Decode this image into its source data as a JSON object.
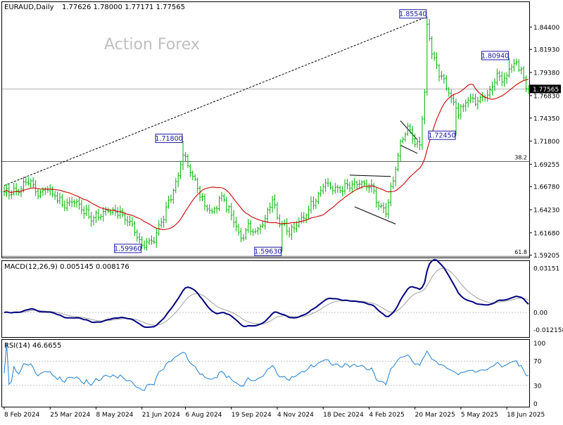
{
  "header": {
    "symbol": "EURAUD,Daily",
    "ohlc": "1.77626 1.78000 1.77171 1.77565"
  },
  "watermark": "Action Forex",
  "colors": {
    "candle": "#00b000",
    "ma": "#cc0000",
    "macd": "#000080",
    "signal": "#a0a0a0",
    "rsi": "#1e7fd0",
    "label_box": "#1a1aa0",
    "trendline": "#000000",
    "price_tag_bg": "#000000"
  },
  "chart_data": [
    {
      "type": "line",
      "title": "EURAUD,Daily",
      "subtitle": "1.77626 1.78000 1.77171 1.77565",
      "yticks": [
        "1.84400",
        "1.81930",
        "1.79380",
        "1.76830",
        "1.74350",
        "1.71800",
        "1.69255",
        "1.66780",
        "1.64230",
        "1.61680",
        "1.59205"
      ],
      "xticks": [
        "8 Feb 2024",
        "25 Mar 2024",
        "8 May 2024",
        "21 Jun 2024",
        "6 Aug 2024",
        "19 Sep 2024",
        "4 Nov 2024",
        "18 Dec 2024",
        "4 Feb 2025",
        "20 Mar 2025",
        "5 May 2025",
        "18 Jun 2025"
      ],
      "ylim": [
        1.5895,
        1.8715
      ],
      "current_price": "1.77565",
      "current_price_value": 1.77565,
      "fib_levels": [
        {
          "label": "38.2",
          "value": 1.6957
        },
        {
          "label": "61.8",
          "value": 1.5909
        }
      ],
      "annotations": [
        {
          "text": "1.85540",
          "value": 1.8554,
          "idx": 175
        },
        {
          "text": "1.80940",
          "value": 1.8094,
          "idx": 209
        },
        {
          "text": "1.71800",
          "value": 1.718,
          "idx": 74
        },
        {
          "text": "1.72450",
          "value": 1.7245,
          "idx": 187
        },
        {
          "text": "1.59960",
          "value": 1.5996,
          "idx": 57
        },
        {
          "text": "1.59630",
          "value": 1.5963,
          "idx": 115
        }
      ],
      "price_anchors": [
        [
          0,
          1.66
        ],
        [
          6,
          1.664
        ],
        [
          10,
          1.676
        ],
        [
          14,
          1.66
        ],
        [
          18,
          1.667
        ],
        [
          24,
          1.648
        ],
        [
          30,
          1.652
        ],
        [
          36,
          1.631
        ],
        [
          42,
          1.641
        ],
        [
          48,
          1.64
        ],
        [
          52,
          1.627
        ],
        [
          57,
          1.601
        ],
        [
          62,
          1.611
        ],
        [
          67,
          1.641
        ],
        [
          71,
          1.672
        ],
        [
          74,
          1.703
        ],
        [
          78,
          1.68
        ],
        [
          82,
          1.652
        ],
        [
          86,
          1.637
        ],
        [
          90,
          1.658
        ],
        [
          94,
          1.635
        ],
        [
          98,
          1.611
        ],
        [
          101,
          1.625
        ],
        [
          104,
          1.618
        ],
        [
          108,
          1.632
        ],
        [
          111,
          1.655
        ],
        [
          114,
          1.628
        ],
        [
          118,
          1.617
        ],
        [
          123,
          1.631
        ],
        [
          128,
          1.652
        ],
        [
          133,
          1.672
        ],
        [
          137,
          1.664
        ],
        [
          142,
          1.668
        ],
        [
          147,
          1.671
        ],
        [
          152,
          1.667
        ],
        [
          155,
          1.645
        ],
        [
          158,
          1.641
        ],
        [
          161,
          1.675
        ],
        [
          164,
          1.715
        ],
        [
          167,
          1.733
        ],
        [
          170,
          1.717
        ],
        [
          172,
          1.715
        ],
        [
          174,
          1.77
        ],
        [
          175,
          1.847
        ],
        [
          177,
          1.818
        ],
        [
          180,
          1.793
        ],
        [
          184,
          1.771
        ],
        [
          188,
          1.75
        ],
        [
          192,
          1.764
        ],
        [
          196,
          1.763
        ],
        [
          200,
          1.77
        ],
        [
          204,
          1.791
        ],
        [
          207,
          1.785
        ],
        [
          210,
          1.803
        ],
        [
          214,
          1.8
        ],
        [
          216,
          1.776
        ]
      ],
      "series": [
        {
          "name": "EURAUD,Daily",
          "values": "candles"
        },
        {
          "name": "MA",
          "values": "moving_average"
        }
      ]
    },
    {
      "type": "line",
      "title": "MACD(12,26,9) 0.005145 0.008176",
      "yticks": [
        "0.03151",
        "0.00",
        "-0.012158"
      ],
      "ylim": [
        -0.0175,
        0.0365
      ],
      "series": [
        {
          "name": "MACD",
          "values": "macd_line"
        },
        {
          "name": "Signal",
          "values": "signal_line"
        }
      ]
    },
    {
      "type": "line",
      "title": "RSI(14) 46.6655",
      "yticks": [
        "100",
        "70",
        "30",
        "0"
      ],
      "ylim": [
        -5,
        105
      ],
      "levels": [
        70,
        30
      ],
      "series": [
        {
          "name": "RSI",
          "values": "rsi_line"
        }
      ]
    }
  ]
}
